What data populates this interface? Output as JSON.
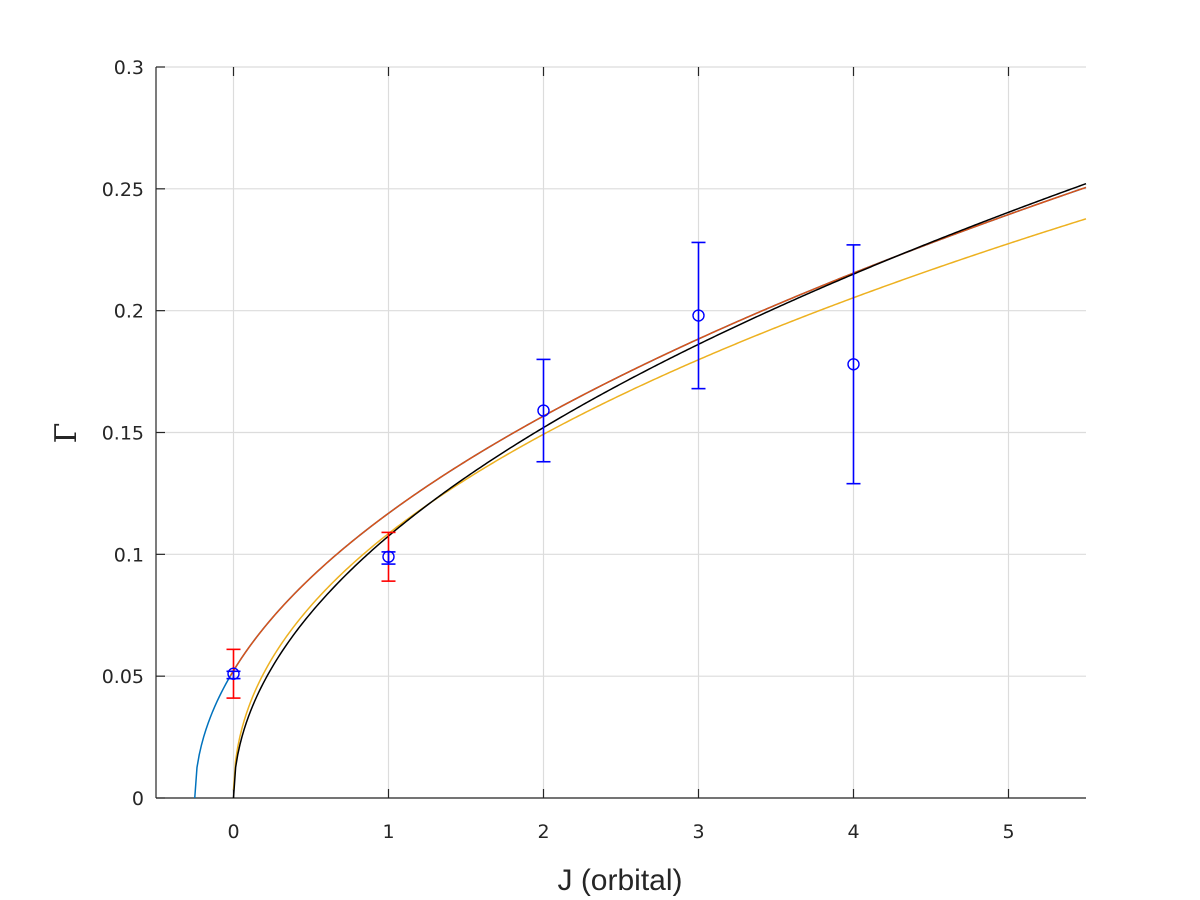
{
  "chart_data": {
    "type": "scatter",
    "title": "",
    "xlabel": "J (orbital)",
    "ylabel": "Γ",
    "xlim": [
      -0.5,
      5.5
    ],
    "ylim": [
      0,
      0.3
    ],
    "grid": true,
    "x_ticks": [
      "0",
      "1",
      "2",
      "3",
      "4",
      "5"
    ],
    "y_ticks": [
      "0",
      "0.05",
      "0.1",
      "0.15",
      "0.2",
      "0.25",
      "0.3"
    ],
    "points": {
      "marker": "circle",
      "color": "#0000ff",
      "x": [
        0,
        1,
        2,
        3,
        4
      ],
      "y": [
        0.051,
        0.099,
        0.159,
        0.198,
        0.178
      ],
      "error_bars": [
        {
          "x": 0,
          "low": 0.049,
          "high": 0.052,
          "color": "#0000ff"
        },
        {
          "x": 1,
          "low": 0.096,
          "high": 0.101,
          "color": "#0000ff"
        },
        {
          "x": 2,
          "low": 0.138,
          "high": 0.18,
          "color": "#0000ff"
        },
        {
          "x": 3,
          "low": 0.168,
          "high": 0.228,
          "color": "#0000ff"
        },
        {
          "x": 4,
          "low": 0.129,
          "high": 0.227,
          "color": "#0000ff"
        }
      ]
    },
    "red_error_bars": [
      {
        "x": 0,
        "low": 0.041,
        "high": 0.061,
        "color": "#ff0000"
      },
      {
        "x": 1,
        "low": 0.089,
        "high": 0.109,
        "color": "#ff0000"
      }
    ],
    "series": [
      {
        "color": "#0072bd",
        "x0": -0.25,
        "a": 0.1045,
        "p": 0.5,
        "x_start": -0.25,
        "x_end": 5.5
      },
      {
        "color": "#d95319",
        "x0": -0.25,
        "a": 0.1045,
        "p": 0.5,
        "x_start": -0.02,
        "x_end": 5.5
      },
      {
        "color": "#edb120",
        "x0": -0.0005,
        "a": 0.1085,
        "p": 0.46,
        "x_start": 0.0,
        "x_end": 5.5
      },
      {
        "color": "#000000",
        "x0": 0,
        "a": 0.1075,
        "p": 0.5,
        "x_start": 0.0,
        "x_end": 5.5
      }
    ]
  }
}
